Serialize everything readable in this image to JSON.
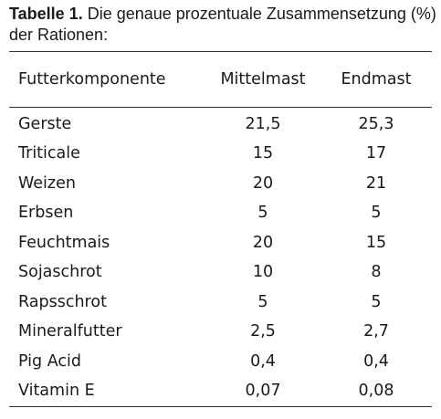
{
  "caption": {
    "label": "Tabelle 1.",
    "text": " Die genaue prozentuale Zusammensetzung (%) der Rationen:"
  },
  "table": {
    "headers": [
      "Futterkomponente",
      "Mittelmast",
      "Endmast"
    ],
    "rows": [
      [
        "Gerste",
        "21,5",
        "25,3"
      ],
      [
        "Triticale",
        "15",
        "17"
      ],
      [
        "Weizen",
        "20",
        "21"
      ],
      [
        "Erbsen",
        "5",
        "5"
      ],
      [
        "Feuchtmais",
        "20",
        "15"
      ],
      [
        "Sojaschrot",
        "10",
        "8"
      ],
      [
        "Rapsschrot",
        "5",
        "5"
      ],
      [
        "Mineralfutter",
        "2,5",
        "2,7"
      ],
      [
        "Pig Acid",
        "0,4",
        "0,4"
      ],
      [
        "Vitamin E",
        "0,07",
        "0,08"
      ]
    ]
  }
}
